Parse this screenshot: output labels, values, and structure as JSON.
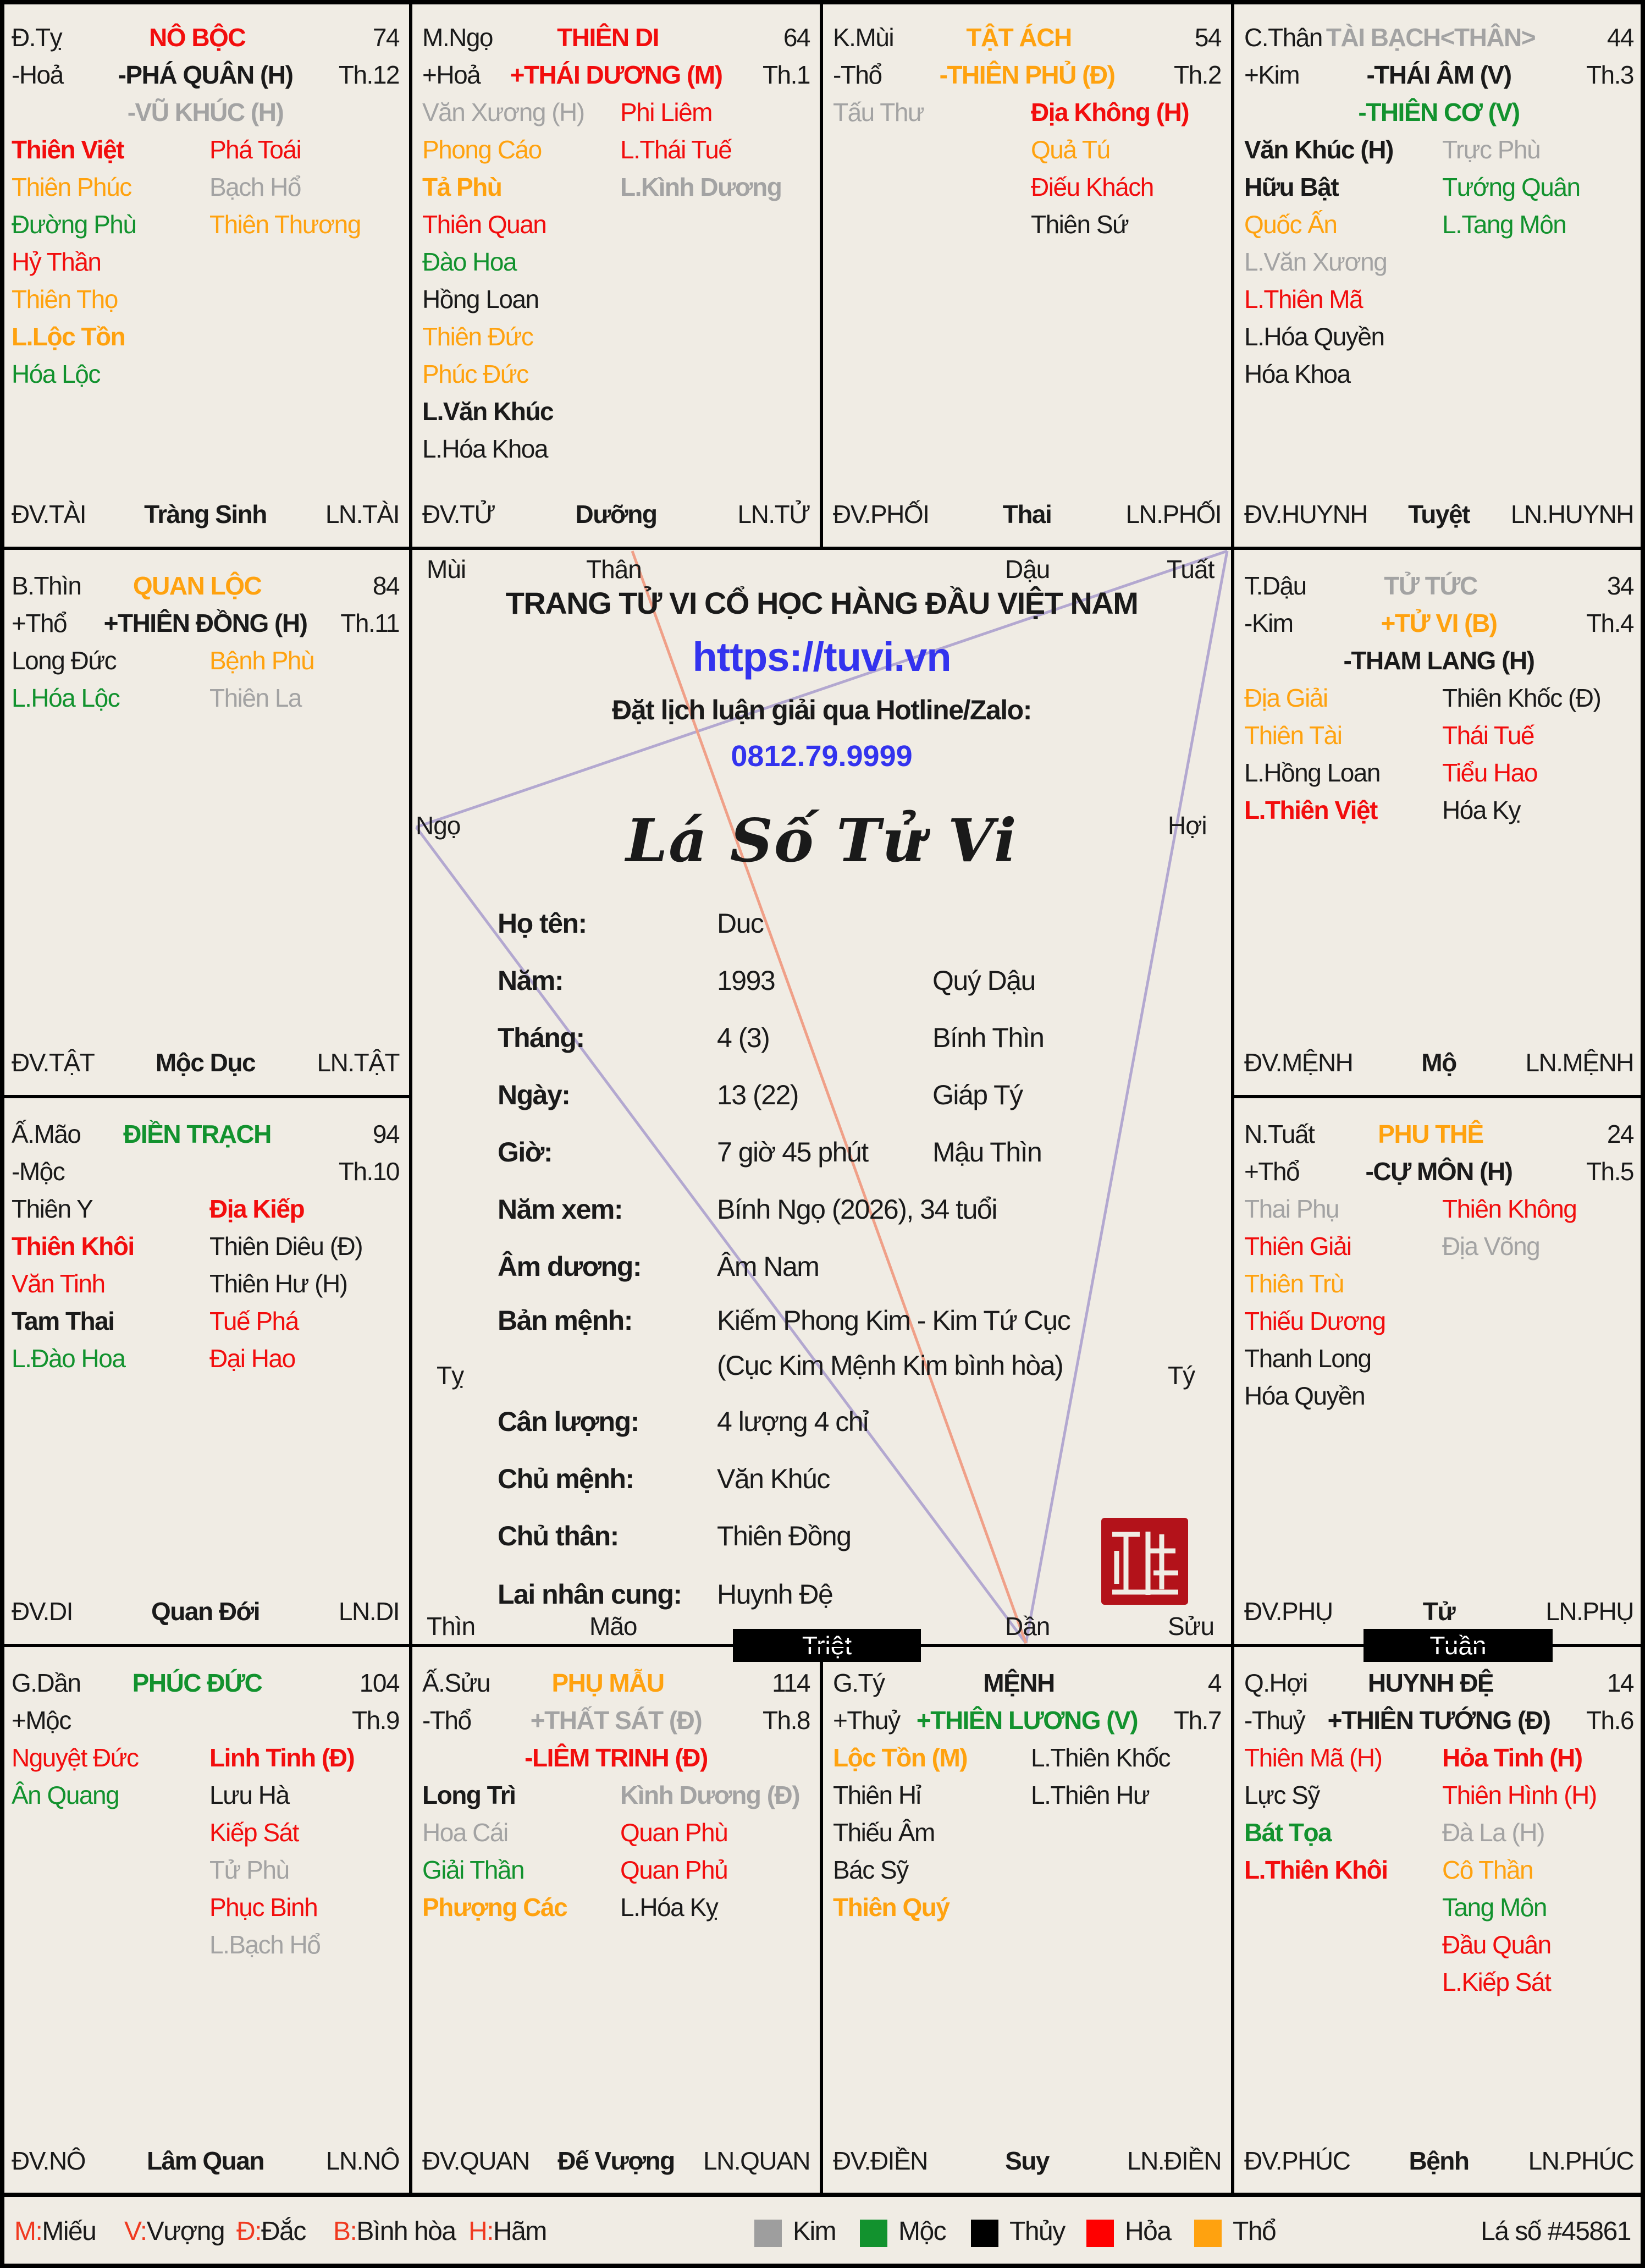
{
  "colors": {
    "R": "#f20d0d",
    "O": "#ffa20f",
    "G": "#12922e",
    "K": "#1a1a1a",
    "Y": "#a3a3a3",
    "blue": "#3333ee",
    "seal": "#b3121a"
  },
  "palaces": [
    {
      "branch": "Đ.Tỵ",
      "title": "NÔ BỘC",
      "title_color": "R",
      "age": "74",
      "element": "-Hoả",
      "th": "Th.12",
      "main": [
        {
          "text": "-PHÁ QUÂN (H)",
          "c": "K"
        },
        {
          "text": "-VŨ KHÚC (H)",
          "c": "Y"
        }
      ],
      "left": [
        {
          "text": "Thiên Việt",
          "c": "R",
          "b": 1
        },
        {
          "text": "Thiên Phúc",
          "c": "O"
        },
        {
          "text": "Đường Phù",
          "c": "G"
        },
        {
          "text": "Hỷ Thần",
          "c": "R"
        },
        {
          "text": "Thiên Thọ",
          "c": "O"
        },
        {
          "text": "L.Lộc Tồn",
          "c": "O",
          "b": 1
        },
        {
          "text": "Hóa Lộc",
          "c": "G"
        }
      ],
      "right": [
        {
          "text": "Phá Toái",
          "c": "R"
        },
        {
          "text": "Bạch Hổ",
          "c": "Y"
        },
        {
          "text": "Thiên Thương",
          "c": "O"
        }
      ],
      "footer": {
        "dv": "ĐV.TÀI",
        "phase": "Tràng Sinh",
        "ln": "LN.TÀI"
      }
    },
    {
      "branch": "M.Ngọ",
      "title": "THIÊN DI",
      "title_color": "R",
      "age": "64",
      "element": "+Hoả",
      "th": "Th.1",
      "main": [
        {
          "text": "+THÁI DƯƠNG (M)",
          "c": "R"
        }
      ],
      "left": [
        {
          "text": "Văn Xương (H)",
          "c": "Y"
        },
        {
          "text": "Phong Cáo",
          "c": "O"
        },
        {
          "text": "Tả Phù",
          "c": "O",
          "b": 1
        },
        {
          "text": "Thiên Quan",
          "c": "R"
        },
        {
          "text": "Đào Hoa",
          "c": "G"
        },
        {
          "text": "Hồng Loan",
          "c": "K"
        },
        {
          "text": "Thiên Đức",
          "c": "O"
        },
        {
          "text": "Phúc Đức",
          "c": "O"
        },
        {
          "text": "L.Văn Khúc",
          "c": "K",
          "b": 1
        },
        {
          "text": "L.Hóa Khoa",
          "c": "K"
        }
      ],
      "right": [
        {
          "text": "Phi Liêm",
          "c": "R"
        },
        {
          "text": "L.Thái Tuế",
          "c": "R"
        },
        {
          "text": "L.Kình Dương",
          "c": "Y",
          "b": 1
        }
      ],
      "footer": {
        "dv": "ĐV.TỬ",
        "phase": "Dưỡng",
        "ln": "LN.TỬ"
      }
    },
    {
      "branch": "K.Mùi",
      "title": "TẬT ÁCH",
      "title_color": "O",
      "age": "54",
      "element": "-Thổ",
      "th": "Th.2",
      "main": [
        {
          "text": "-THIÊN PHỦ (Đ)",
          "c": "O"
        }
      ],
      "left": [
        {
          "text": "Tấu Thư",
          "c": "Y"
        }
      ],
      "right": [
        {
          "text": "Địa Không (H)",
          "c": "R",
          "b": 1
        },
        {
          "text": "Quả Tú",
          "c": "O"
        },
        {
          "text": "Điếu Khách",
          "c": "R"
        },
        {
          "text": "Thiên Sứ",
          "c": "K"
        }
      ],
      "footer": {
        "dv": "ĐV.PHỐI",
        "phase": "Thai",
        "ln": "LN.PHỐI"
      }
    },
    {
      "branch": "C.Thân",
      "title": "TÀI BẠCH<THÂN>",
      "title_color": "Y",
      "age": "44",
      "element": "+Kim",
      "th": "Th.3",
      "main": [
        {
          "text": "-THÁI ÂM (V)",
          "c": "K"
        },
        {
          "text": "-THIÊN CƠ (V)",
          "c": "G"
        }
      ],
      "left": [
        {
          "text": "Văn Khúc (H)",
          "c": "K",
          "b": 1
        },
        {
          "text": "Hữu Bật",
          "c": "K",
          "b": 1
        },
        {
          "text": "Quốc Ấn",
          "c": "O"
        },
        {
          "text": "L.Văn Xương",
          "c": "Y"
        },
        {
          "text": "L.Thiên Mã",
          "c": "R"
        },
        {
          "text": "L.Hóa Quyền",
          "c": "K"
        },
        {
          "text": "Hóa Khoa",
          "c": "K"
        }
      ],
      "right": [
        {
          "text": "Trực Phù",
          "c": "Y"
        },
        {
          "text": "Tướng Quân",
          "c": "G"
        },
        {
          "text": "L.Tang Môn",
          "c": "G"
        }
      ],
      "footer": {
        "dv": "ĐV.HUYNH",
        "phase": "Tuyệt",
        "ln": "LN.HUYNH"
      }
    },
    {
      "branch": "B.Thìn",
      "title": "QUAN LỘC",
      "title_color": "O",
      "age": "84",
      "element": "+Thổ",
      "th": "Th.11",
      "main": [
        {
          "text": "+THIÊN ĐỒNG (H)",
          "c": "K"
        }
      ],
      "left": [
        {
          "text": "Long Đức",
          "c": "K"
        },
        {
          "text": "L.Hóa Lộc",
          "c": "G"
        }
      ],
      "right": [
        {
          "text": "Bệnh Phù",
          "c": "O"
        },
        {
          "text": "Thiên La",
          "c": "Y"
        }
      ],
      "footer": {
        "dv": "ĐV.TẬT",
        "phase": "Mộc Dục",
        "ln": "LN.TẬT"
      }
    },
    {
      "branch": "T.Dậu",
      "title": "TỬ TỨC",
      "title_color": "Y",
      "age": "34",
      "element": "-Kim",
      "th": "Th.4",
      "main": [
        {
          "text": "+TỬ VI (B)",
          "c": "O"
        },
        {
          "text": "-THAM LANG (H)",
          "c": "K"
        }
      ],
      "left": [
        {
          "text": "Địa Giải",
          "c": "O"
        },
        {
          "text": "Thiên Tài",
          "c": "O"
        },
        {
          "text": "L.Hồng Loan",
          "c": "K"
        },
        {
          "text": "L.Thiên Việt",
          "c": "R",
          "b": 1
        }
      ],
      "right": [
        {
          "text": "Thiên Khốc (Đ)",
          "c": "K"
        },
        {
          "text": "Thái Tuế",
          "c": "R"
        },
        {
          "text": "Tiểu Hao",
          "c": "R"
        },
        {
          "text": "Hóa Kỵ",
          "c": "K"
        }
      ],
      "footer": {
        "dv": "ĐV.MỆNH",
        "phase": "Mộ",
        "ln": "LN.MỆNH"
      }
    },
    {
      "branch": "Ấ.Mão",
      "title": "ĐIỀN TRẠCH",
      "title_color": "G",
      "age": "94",
      "element": "-Mộc",
      "th": "Th.10",
      "main": [],
      "left": [
        {
          "text": "Thiên Y",
          "c": "K"
        },
        {
          "text": "Thiên Khôi",
          "c": "R",
          "b": 1
        },
        {
          "text": "Văn Tinh",
          "c": "R"
        },
        {
          "text": "Tam Thai",
          "c": "K",
          "b": 1
        },
        {
          "text": "L.Đào Hoa",
          "c": "G"
        }
      ],
      "right": [
        {
          "text": "Địa Kiếp",
          "c": "R",
          "b": 1
        },
        {
          "text": "Thiên Diêu (Đ)",
          "c": "K"
        },
        {
          "text": "Thiên Hư (H)",
          "c": "K"
        },
        {
          "text": "Tuế Phá",
          "c": "R"
        },
        {
          "text": "Đại Hao",
          "c": "R"
        }
      ],
      "footer": {
        "dv": "ĐV.DI",
        "phase": "Quan Đới",
        "ln": "LN.DI"
      }
    },
    {
      "branch": "N.Tuất",
      "title": "PHU THÊ",
      "title_color": "O",
      "age": "24",
      "element": "+Thổ",
      "th": "Th.5",
      "main": [
        {
          "text": "-CỰ MÔN (H)",
          "c": "K"
        }
      ],
      "left": [
        {
          "text": "Thai Phụ",
          "c": "Y"
        },
        {
          "text": "Thiên Giải",
          "c": "R"
        },
        {
          "text": "Thiên Trù",
          "c": "O"
        },
        {
          "text": "Thiếu Dương",
          "c": "R"
        },
        {
          "text": "Thanh Long",
          "c": "K"
        },
        {
          "text": "Hóa Quyền",
          "c": "K"
        }
      ],
      "right": [
        {
          "text": "Thiên Không",
          "c": "R"
        },
        {
          "text": "Địa Võng",
          "c": "Y"
        }
      ],
      "footer": {
        "dv": "ĐV.PHỤ",
        "phase": "Tử",
        "ln": "LN.PHỤ"
      }
    },
    {
      "branch": "G.Dần",
      "title": "PHÚC ĐỨC",
      "title_color": "G",
      "age": "104",
      "element": "+Mộc",
      "th": "Th.9",
      "main": [],
      "left": [
        {
          "text": "Nguyệt Đức",
          "c": "R"
        },
        {
          "text": "Ân Quang",
          "c": "G"
        }
      ],
      "right": [
        {
          "text": "Linh Tinh (Đ)",
          "c": "R",
          "b": 1
        },
        {
          "text": "Lưu Hà",
          "c": "K"
        },
        {
          "text": "Kiếp Sát",
          "c": "R"
        },
        {
          "text": "Tử Phù",
          "c": "Y"
        },
        {
          "text": "Phục Binh",
          "c": "R"
        },
        {
          "text": "L.Bạch Hổ",
          "c": "Y"
        }
      ],
      "footer": {
        "dv": "ĐV.NÔ",
        "phase": "Lâm Quan",
        "ln": "LN.NÔ"
      }
    },
    {
      "branch": "Ấ.Sửu",
      "title": "PHỤ MẪU",
      "title_color": "O",
      "age": "114",
      "element": "-Thổ",
      "th": "Th.8",
      "main": [
        {
          "text": "+THẤT SÁT (Đ)",
          "c": "Y"
        },
        {
          "text": "-LIÊM TRINH (Đ)",
          "c": "R"
        }
      ],
      "left": [
        {
          "text": "Long Trì",
          "c": "K",
          "b": 1
        },
        {
          "text": "Hoa Cái",
          "c": "Y"
        },
        {
          "text": "Giải Thần",
          "c": "G"
        },
        {
          "text": "Phượng Các",
          "c": "O",
          "b": 1
        }
      ],
      "right": [
        {
          "text": "Kình Dương (Đ)",
          "c": "Y",
          "b": 1
        },
        {
          "text": "Quan Phù",
          "c": "R"
        },
        {
          "text": "Quan Phủ",
          "c": "R"
        },
        {
          "text": "L.Hóa Kỵ",
          "c": "K"
        }
      ],
      "footer": {
        "dv": "ĐV.QUAN",
        "phase": "Đế Vượng",
        "ln": "LN.QUAN"
      }
    },
    {
      "branch": "G.Tý",
      "title": "MỆNH",
      "title_color": "K",
      "age": "4",
      "element": "+Thuỷ",
      "th": "Th.7",
      "main": [
        {
          "text": "+THIÊN LƯƠNG (V)",
          "c": "G"
        }
      ],
      "left": [
        {
          "text": "Lộc Tồn (M)",
          "c": "O",
          "b": 1
        },
        {
          "text": "Thiên Hỉ",
          "c": "K"
        },
        {
          "text": "Thiếu Âm",
          "c": "K"
        },
        {
          "text": "Bác Sỹ",
          "c": "K"
        },
        {
          "text": "Thiên Quý",
          "c": "O",
          "b": 1
        }
      ],
      "right": [
        {
          "text": "L.Thiên Khốc",
          "c": "K"
        },
        {
          "text": "L.Thiên Hư",
          "c": "K"
        }
      ],
      "footer": {
        "dv": "ĐV.ĐIỀN",
        "phase": "Suy",
        "ln": "LN.ĐIỀN"
      }
    },
    {
      "branch": "Q.Hợi",
      "title": "HUYNH ĐỆ",
      "title_color": "K",
      "age": "14",
      "element": "-Thuỷ",
      "th": "Th.6",
      "main": [
        {
          "text": "+THIÊN TƯỚNG (Đ)",
          "c": "K"
        }
      ],
      "left": [
        {
          "text": "Thiên Mã (H)",
          "c": "R"
        },
        {
          "text": "Lực Sỹ",
          "c": "K"
        },
        {
          "text": "Bát Tọa",
          "c": "G",
          "b": 1
        },
        {
          "text": "L.Thiên Khôi",
          "c": "R",
          "b": 1
        }
      ],
      "right": [
        {
          "text": "Hỏa Tinh (H)",
          "c": "R",
          "b": 1
        },
        {
          "text": "Thiên Hình (H)",
          "c": "R"
        },
        {
          "text": "Đà La (H)",
          "c": "Y"
        },
        {
          "text": "Cô Thần",
          "c": "O"
        },
        {
          "text": "Tang Môn",
          "c": "G"
        },
        {
          "text": "Đầu Quân",
          "c": "R"
        },
        {
          "text": "L.Kiếp Sát",
          "c": "R"
        }
      ],
      "footer": {
        "dv": "ĐV.PHÚC",
        "phase": "Bệnh",
        "ln": "LN.PHÚC"
      }
    }
  ],
  "center": {
    "branches": {
      "mui": "Mùi",
      "than": "Thân",
      "dau": "Dậu",
      "tuat": "Tuất",
      "ngo": "Ngọ",
      "hoi": "Hợi",
      "ty": "Tỵ",
      "ti": "Tý",
      "thin": "Thìn",
      "mao": "Mão",
      "dan": "Dần",
      "suu": "Sửu"
    },
    "headline": "TRANG TỬ VI CỔ HỌC HÀNG ĐẦU VIỆT NAM",
    "url": "https://tuvi.vn",
    "hotline_label": "Đặt lịch luận giải qua Hotline/Zalo:",
    "phone": "0812.79.9999",
    "chart_title": "Lá Số Tử Vi",
    "info": [
      {
        "label": "Họ tên:",
        "value": "Duc",
        "extra": ""
      },
      {
        "label": "Năm:",
        "value": "1993",
        "extra": "Quý Dậu"
      },
      {
        "label": "Tháng:",
        "value": "4 (3)",
        "extra": "Bính Thìn"
      },
      {
        "label": "Ngày:",
        "value": "13 (22)",
        "extra": "Giáp Tý"
      },
      {
        "label": "Giờ:",
        "value": "7 giờ 45 phút",
        "extra": "Mậu Thìn"
      },
      {
        "label": "Năm xem:",
        "value": "Bính Ngọ (2026), 34 tuổi",
        "extra": ""
      },
      {
        "label": "Âm dương:",
        "value": "Âm Nam",
        "extra": ""
      },
      {
        "label": "Bản mệnh:",
        "value": "Kiếm Phong Kim - Kim Tứ Cục",
        "extra": ""
      },
      {
        "label": "",
        "value": "(Cục Kim Mệnh Kim bình hòa)",
        "extra": ""
      },
      {
        "label": "Cân lượng:",
        "value": "4 lượng 4 chỉ",
        "extra": ""
      },
      {
        "label": "Chủ mệnh:",
        "value": "Văn Khúc",
        "extra": ""
      },
      {
        "label": "Chủ thân:",
        "value": "Thiên Đồng",
        "extra": ""
      },
      {
        "label": "Lai nhân cung:",
        "value": "Huynh Đệ",
        "extra": ""
      }
    ],
    "seal_text": "Tử Vi",
    "triet": "Triệt",
    "tuan": "Tuần"
  },
  "legend": {
    "strengths": [
      {
        "k": "M:",
        "v": "Miếu"
      },
      {
        "k": "V:",
        "v": "Vượng"
      },
      {
        "k": "Đ:",
        "v": "Đắc"
      },
      {
        "k": "B:",
        "v": "Bình hòa"
      },
      {
        "k": "H:",
        "v": "Hãm"
      }
    ],
    "elements": [
      {
        "name": "Kim",
        "color": "#9e9e9e"
      },
      {
        "name": "Mộc",
        "color": "#12922e"
      },
      {
        "name": "Thủy",
        "color": "#000000"
      },
      {
        "name": "Hỏa",
        "color": "#ff0000"
      },
      {
        "name": "Thổ",
        "color": "#ffa20f"
      }
    ],
    "chart_id": "Lá số #45861"
  }
}
